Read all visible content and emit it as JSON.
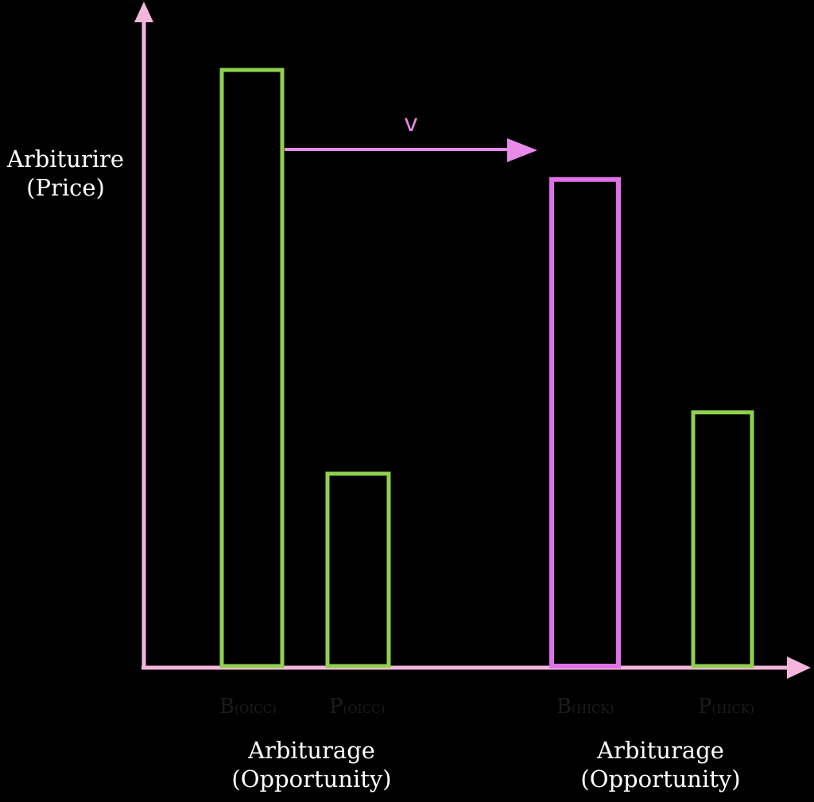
{
  "chart_data": {
    "type": "bar",
    "ylabel": [
      "Arbiturire",
      "(Price)"
    ],
    "ylim": [
      0,
      100
    ],
    "categories": [
      {
        "main": "B",
        "sub": "(OICC)",
        "group": "Arbiturage (Opportunity)"
      },
      {
        "main": "P",
        "sub": "(OICC)",
        "group": "Arbiturage (Opportunity)"
      },
      {
        "main": "B",
        "sub": "(HICK)",
        "group": "Arbiturage (Opportunity)"
      },
      {
        "main": "P",
        "sub": "(HICK)",
        "group": "Arbiturage (Opportunity)"
      }
    ],
    "values": [
      90.6,
      29.4,
      74.0,
      38.7
    ],
    "bar_colors": [
      "#8fd14f",
      "#8fd14f",
      "#e070e8",
      "#8fd14f"
    ],
    "group_labels": [
      {
        "line1": "Arbiturage",
        "line2": "(Opportunity)"
      },
      {
        "line1": "Arbiturage",
        "line2": "(Opportunity)"
      }
    ],
    "arrow_label": "v",
    "axis_color": "#f4b6dc",
    "arrow_color": "#e88ae8"
  }
}
